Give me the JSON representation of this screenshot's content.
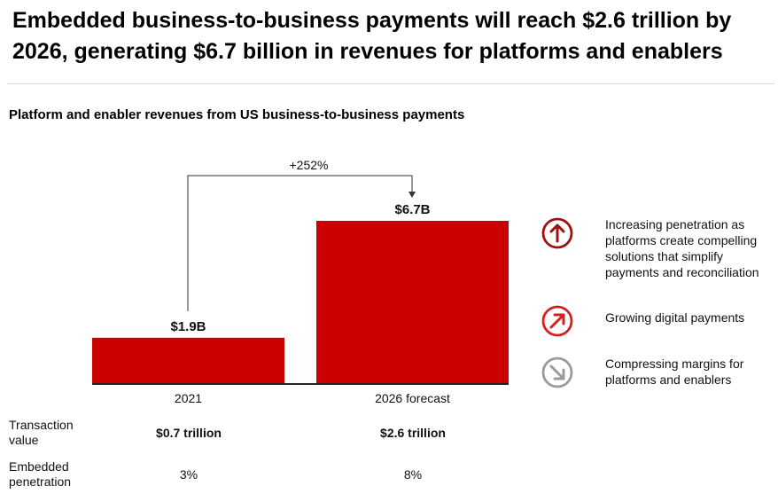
{
  "headline": "Embedded business-to-business payments will reach $2.6 trillion by 2026, generating $6.7 billion in revenues for platforms and enablers",
  "colors": {
    "bar": "#cc0000",
    "icon_dark_red": "#a01010",
    "icon_red": "#d41f1f",
    "icon_gray": "#9a9a9a"
  },
  "chart_data": {
    "type": "bar",
    "title": "Platform and enabler revenues from US business-to-business payments",
    "categories": [
      "2021",
      "2026 forecast"
    ],
    "values": [
      1.9,
      6.7
    ],
    "unit": "$B",
    "data_labels": [
      "$1.9B",
      "$6.7B"
    ],
    "annotation": "+252%",
    "ylim": [
      0,
      6.7
    ],
    "grid": false,
    "legend": "none"
  },
  "drivers": [
    {
      "icon": "arrow-up-circle-icon",
      "text": "Increasing penetration as platforms create compelling solutions that simplify payments and reconciliation"
    },
    {
      "icon": "arrow-up-right-circle-icon",
      "text": "Growing digital payments"
    },
    {
      "icon": "arrow-down-right-circle-icon",
      "text": "Compressing margins for platforms and enablers"
    }
  ],
  "metrics": {
    "transaction_value": {
      "label": "Transaction value",
      "values": [
        "$0.7 trillion",
        "$2.6 trillion"
      ]
    },
    "embedded_penetration": {
      "label": "Embedded penetration",
      "values": [
        "3%",
        "8%"
      ]
    }
  }
}
